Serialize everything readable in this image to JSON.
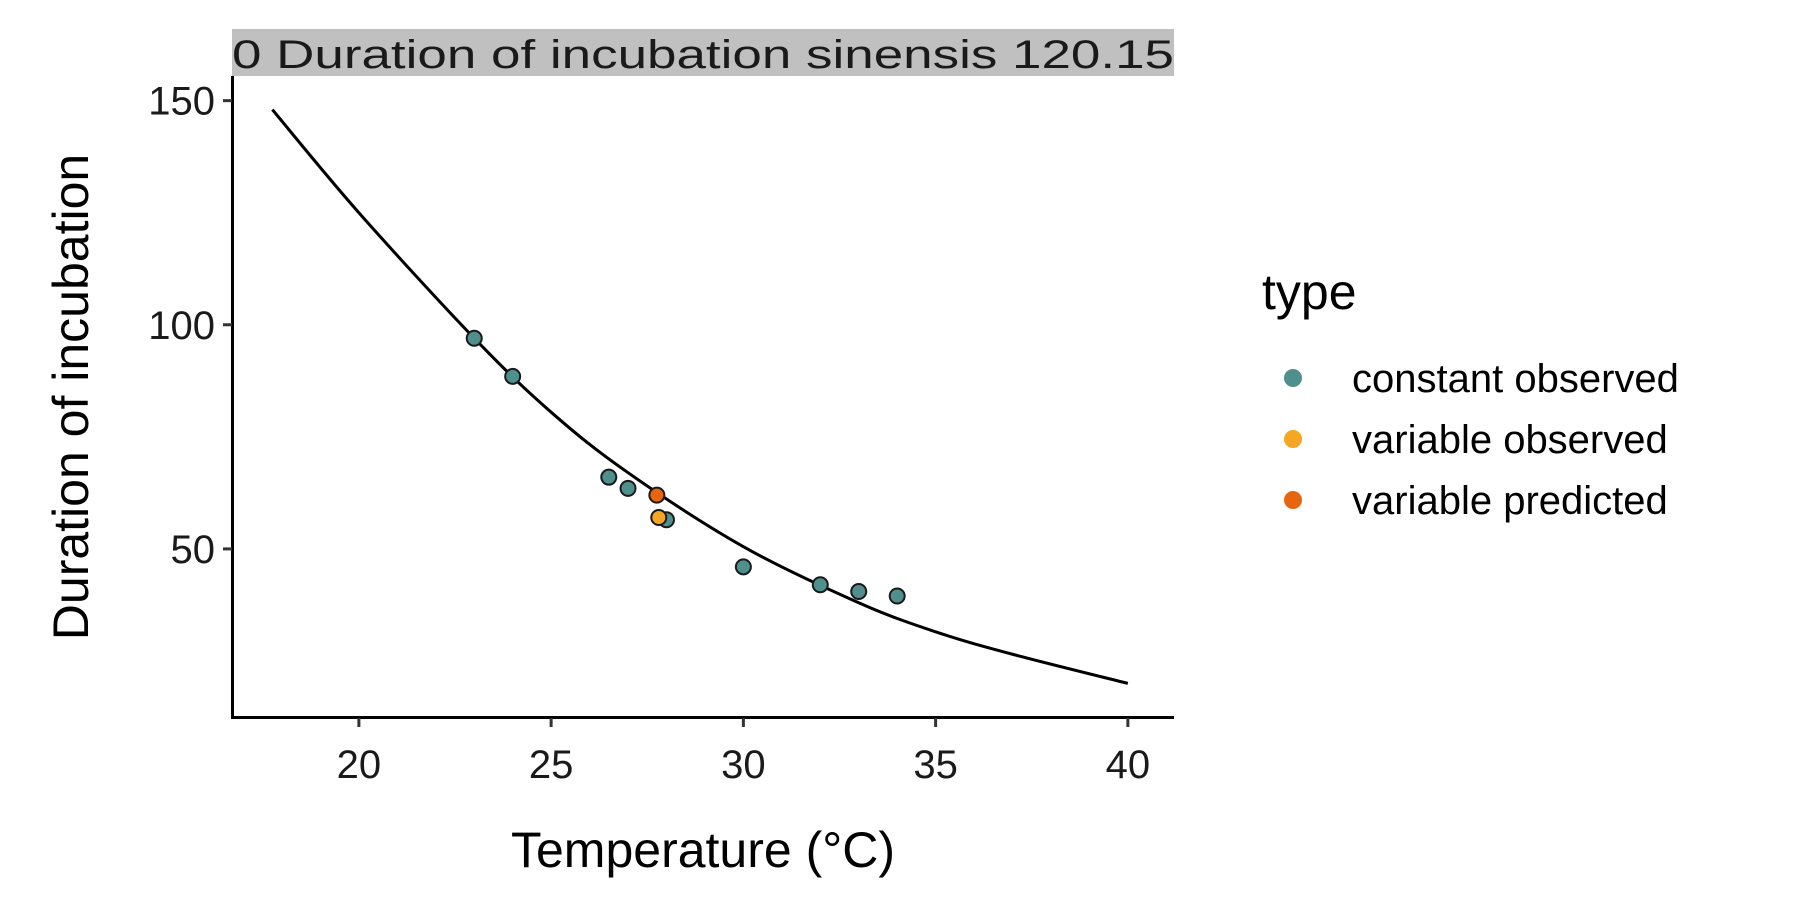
{
  "chart_data": {
    "type": "scatter",
    "strip": {
      "text": "0  Duration of incubation  sinensis  120.15",
      "background": "#c0c0c0"
    },
    "xlabel": "Temperature (°C)",
    "ylabel": "Duration of incubation",
    "xlim": [
      16.7,
      41.2
    ],
    "ylim": [
      12.5,
      155.5
    ],
    "x_ticks": [
      20,
      25,
      30,
      35,
      40
    ],
    "y_ticks": [
      50,
      100,
      150
    ],
    "grid": false,
    "legend": {
      "title": "type",
      "position": "right",
      "entries": [
        {
          "label": "constant observed",
          "color": "#4f8f8c"
        },
        {
          "label": "variable observed",
          "color": "#f5a623"
        },
        {
          "label": "variable predicted",
          "color": "#e8650f"
        }
      ]
    },
    "series": [
      {
        "name": "constant observed",
        "color": "#4f8f8c",
        "points": [
          {
            "x": 23,
            "y": 97
          },
          {
            "x": 24,
            "y": 88.5
          },
          {
            "x": 26.5,
            "y": 66
          },
          {
            "x": 27,
            "y": 63.5
          },
          {
            "x": 28,
            "y": 56.5
          },
          {
            "x": 30,
            "y": 46
          },
          {
            "x": 32,
            "y": 42
          },
          {
            "x": 33,
            "y": 40.5
          },
          {
            "x": 34,
            "y": 39.5
          }
        ]
      },
      {
        "name": "variable observed",
        "color": "#f5a623",
        "points": [
          {
            "x": 27.8,
            "y": 57
          }
        ]
      },
      {
        "name": "variable predicted",
        "color": "#e8650f",
        "points": [
          {
            "x": 27.75,
            "y": 62
          }
        ]
      }
    ],
    "fit_curve": {
      "color": "#000000",
      "points": [
        {
          "x": 17.75,
          "y": 148
        },
        {
          "x": 20,
          "y": 125
        },
        {
          "x": 23,
          "y": 97
        },
        {
          "x": 25,
          "y": 80.5
        },
        {
          "x": 27,
          "y": 67
        },
        {
          "x": 30,
          "y": 50.5
        },
        {
          "x": 33,
          "y": 38
        },
        {
          "x": 35,
          "y": 31.5
        },
        {
          "x": 37,
          "y": 26.5
        },
        {
          "x": 40,
          "y": 20
        }
      ]
    }
  }
}
